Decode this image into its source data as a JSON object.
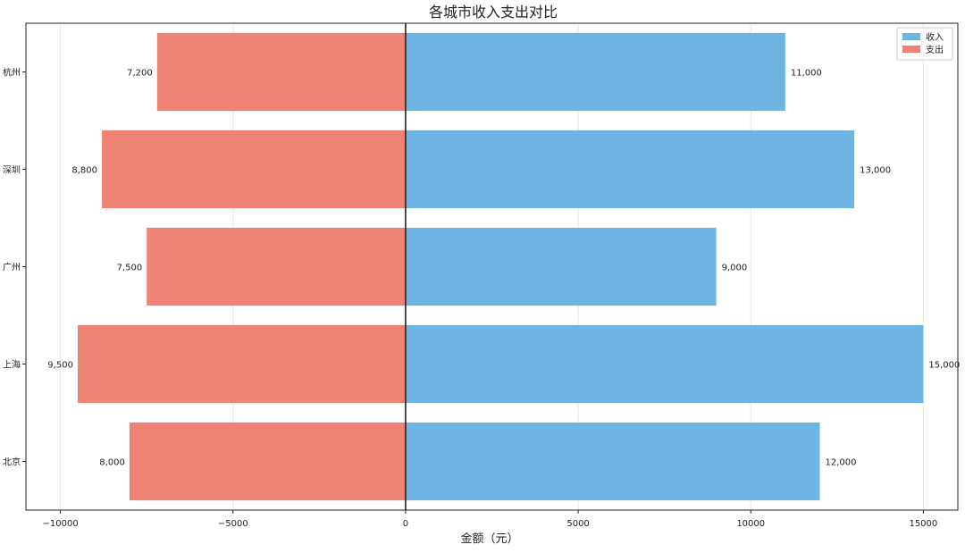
{
  "chart_data": {
    "type": "bar",
    "orientation": "horizontal",
    "title": "各城市收入支出对比",
    "xlabel": "金额（元）",
    "ylabel": "",
    "categories": [
      "北京",
      "上海",
      "广州",
      "深圳",
      "杭州"
    ],
    "series": [
      {
        "name": "收入",
        "color": "#6EB5E3",
        "values": [
          12000,
          15000,
          9000,
          13000,
          11000
        ],
        "labels": [
          "12,000",
          "15,000",
          "9,000",
          "13,000",
          "11,000"
        ]
      },
      {
        "name": "支出",
        "color": "#EE8275",
        "values": [
          -8000,
          -9500,
          -7500,
          -8800,
          -7200
        ],
        "labels": [
          "8,000",
          "9,500",
          "7,500",
          "8,800",
          "7,200"
        ]
      }
    ],
    "xlim": [
      -11000,
      16000
    ],
    "xticks": [
      -10000,
      -5000,
      0,
      5000,
      10000,
      15000
    ],
    "xtick_labels": [
      "−10000",
      "−5000",
      "0",
      "5000",
      "10000",
      "15000"
    ],
    "grid": "x",
    "legend": "top-right",
    "zero_line": true
  }
}
